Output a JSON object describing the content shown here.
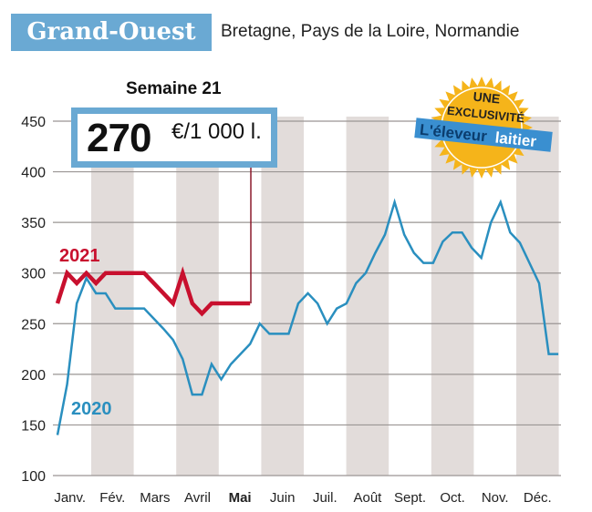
{
  "header": {
    "region": "Grand-Ouest",
    "subtitle": "Bretagne, Pays de la Loire, Normandie"
  },
  "callout": {
    "week_label": "Semaine 21",
    "value": "270",
    "unit": "€/1 000 l."
  },
  "badge": {
    "line1": "UNE",
    "line2": "EXCLUSIVITÉ",
    "brand_a": "L'éleveur",
    "brand_b": "laitier",
    "color": "#f5b41a",
    "brand_color": "#3a8fd0"
  },
  "chart_data": {
    "type": "line",
    "ylim": [
      100,
      450
    ],
    "yticks": [
      100,
      150,
      200,
      250,
      300,
      350,
      400,
      450
    ],
    "month_labels": [
      "Janv.",
      "Fév.",
      "Mars",
      "Avril",
      "Mai",
      "Juin",
      "Juil.",
      "Août",
      "Sept.",
      "Oct.",
      "Nov.",
      "Déc."
    ],
    "highlighted_month": "Mai",
    "grid": true,
    "x_unit": "week",
    "series": [
      {
        "name": "2020",
        "color": "#2a8fbf",
        "weeks": [
          1,
          2,
          3,
          4,
          5,
          6,
          7,
          8,
          9,
          10,
          11,
          12,
          13,
          14,
          15,
          16,
          17,
          18,
          19,
          20,
          21,
          22,
          23,
          24,
          25,
          26,
          27,
          28,
          29,
          30,
          31,
          32,
          33,
          34,
          35,
          36,
          37,
          38,
          39,
          40,
          41,
          42,
          43,
          44,
          45,
          46,
          47,
          48,
          49,
          50,
          51,
          52,
          53
        ],
        "values": [
          140,
          190,
          270,
          295,
          280,
          280,
          265,
          265,
          265,
          265,
          255,
          245,
          234,
          215,
          180,
          180,
          210,
          195,
          210,
          220,
          230,
          250,
          240,
          240,
          240,
          270,
          280,
          270,
          250,
          265,
          270,
          290,
          300,
          320,
          338,
          370,
          338,
          320,
          310,
          310,
          331,
          340,
          340,
          325,
          315,
          350,
          370,
          340,
          330,
          310,
          290,
          220,
          220
        ]
      },
      {
        "name": "2021",
        "color": "#c8102e",
        "weeks": [
          1,
          2,
          3,
          4,
          5,
          6,
          7,
          8,
          9,
          10,
          11,
          12,
          13,
          14,
          15,
          16,
          17,
          18,
          19,
          20,
          21
        ],
        "values": [
          270,
          300,
          290,
          300,
          290,
          300,
          300,
          300,
          300,
          300,
          290,
          280,
          270,
          300,
          270,
          260,
          270,
          270,
          270,
          270,
          270
        ]
      }
    ]
  }
}
